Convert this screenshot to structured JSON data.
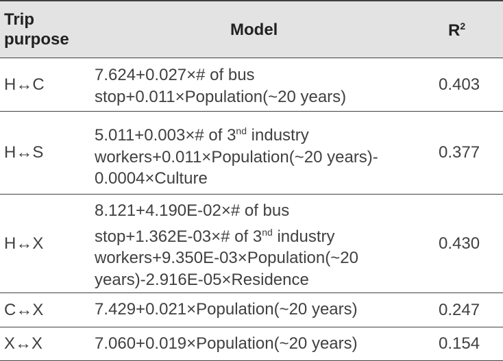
{
  "header": {
    "purpose": "Trip purpose",
    "model": "Model",
    "r2": "R",
    "r2_sup": "2"
  },
  "rows": [
    {
      "purpose": "H↔C",
      "r2": "0.403"
    },
    {
      "purpose": "H↔S",
      "r2": "0.377"
    },
    {
      "purpose": "H↔X",
      "r2": "0.430"
    },
    {
      "purpose": "C↔X",
      "r2": "0.247"
    },
    {
      "purpose": "X↔X",
      "r2": "0.154"
    }
  ],
  "models": {
    "m0_l1": "7.624+0.027×# of bus",
    "m0_l2": "stop+0.011×Population(~20 years)",
    "m1_l1a": "5.011+0.003×# of 3",
    "m1_l1sup": "nd",
    "m1_l1b": " industry",
    "m1_l2": "workers+0.011×Population(~20 years)-",
    "m1_l3": "0.0004×Culture",
    "m2_l1": "8.121+4.190E-02×# of bus",
    "m2_l2a": "stop+1.362E-03×# of 3",
    "m2_l2sup": "nd",
    "m2_l2b": " industry",
    "m2_l3": "workers+9.350E-03×Population(~20",
    "m2_l4": "years)-2.916E-05×Residence",
    "m3_l1": "7.429+0.021×Population(~20 years)",
    "m4_l1": "7.060+0.019×Population(~20 years)"
  }
}
